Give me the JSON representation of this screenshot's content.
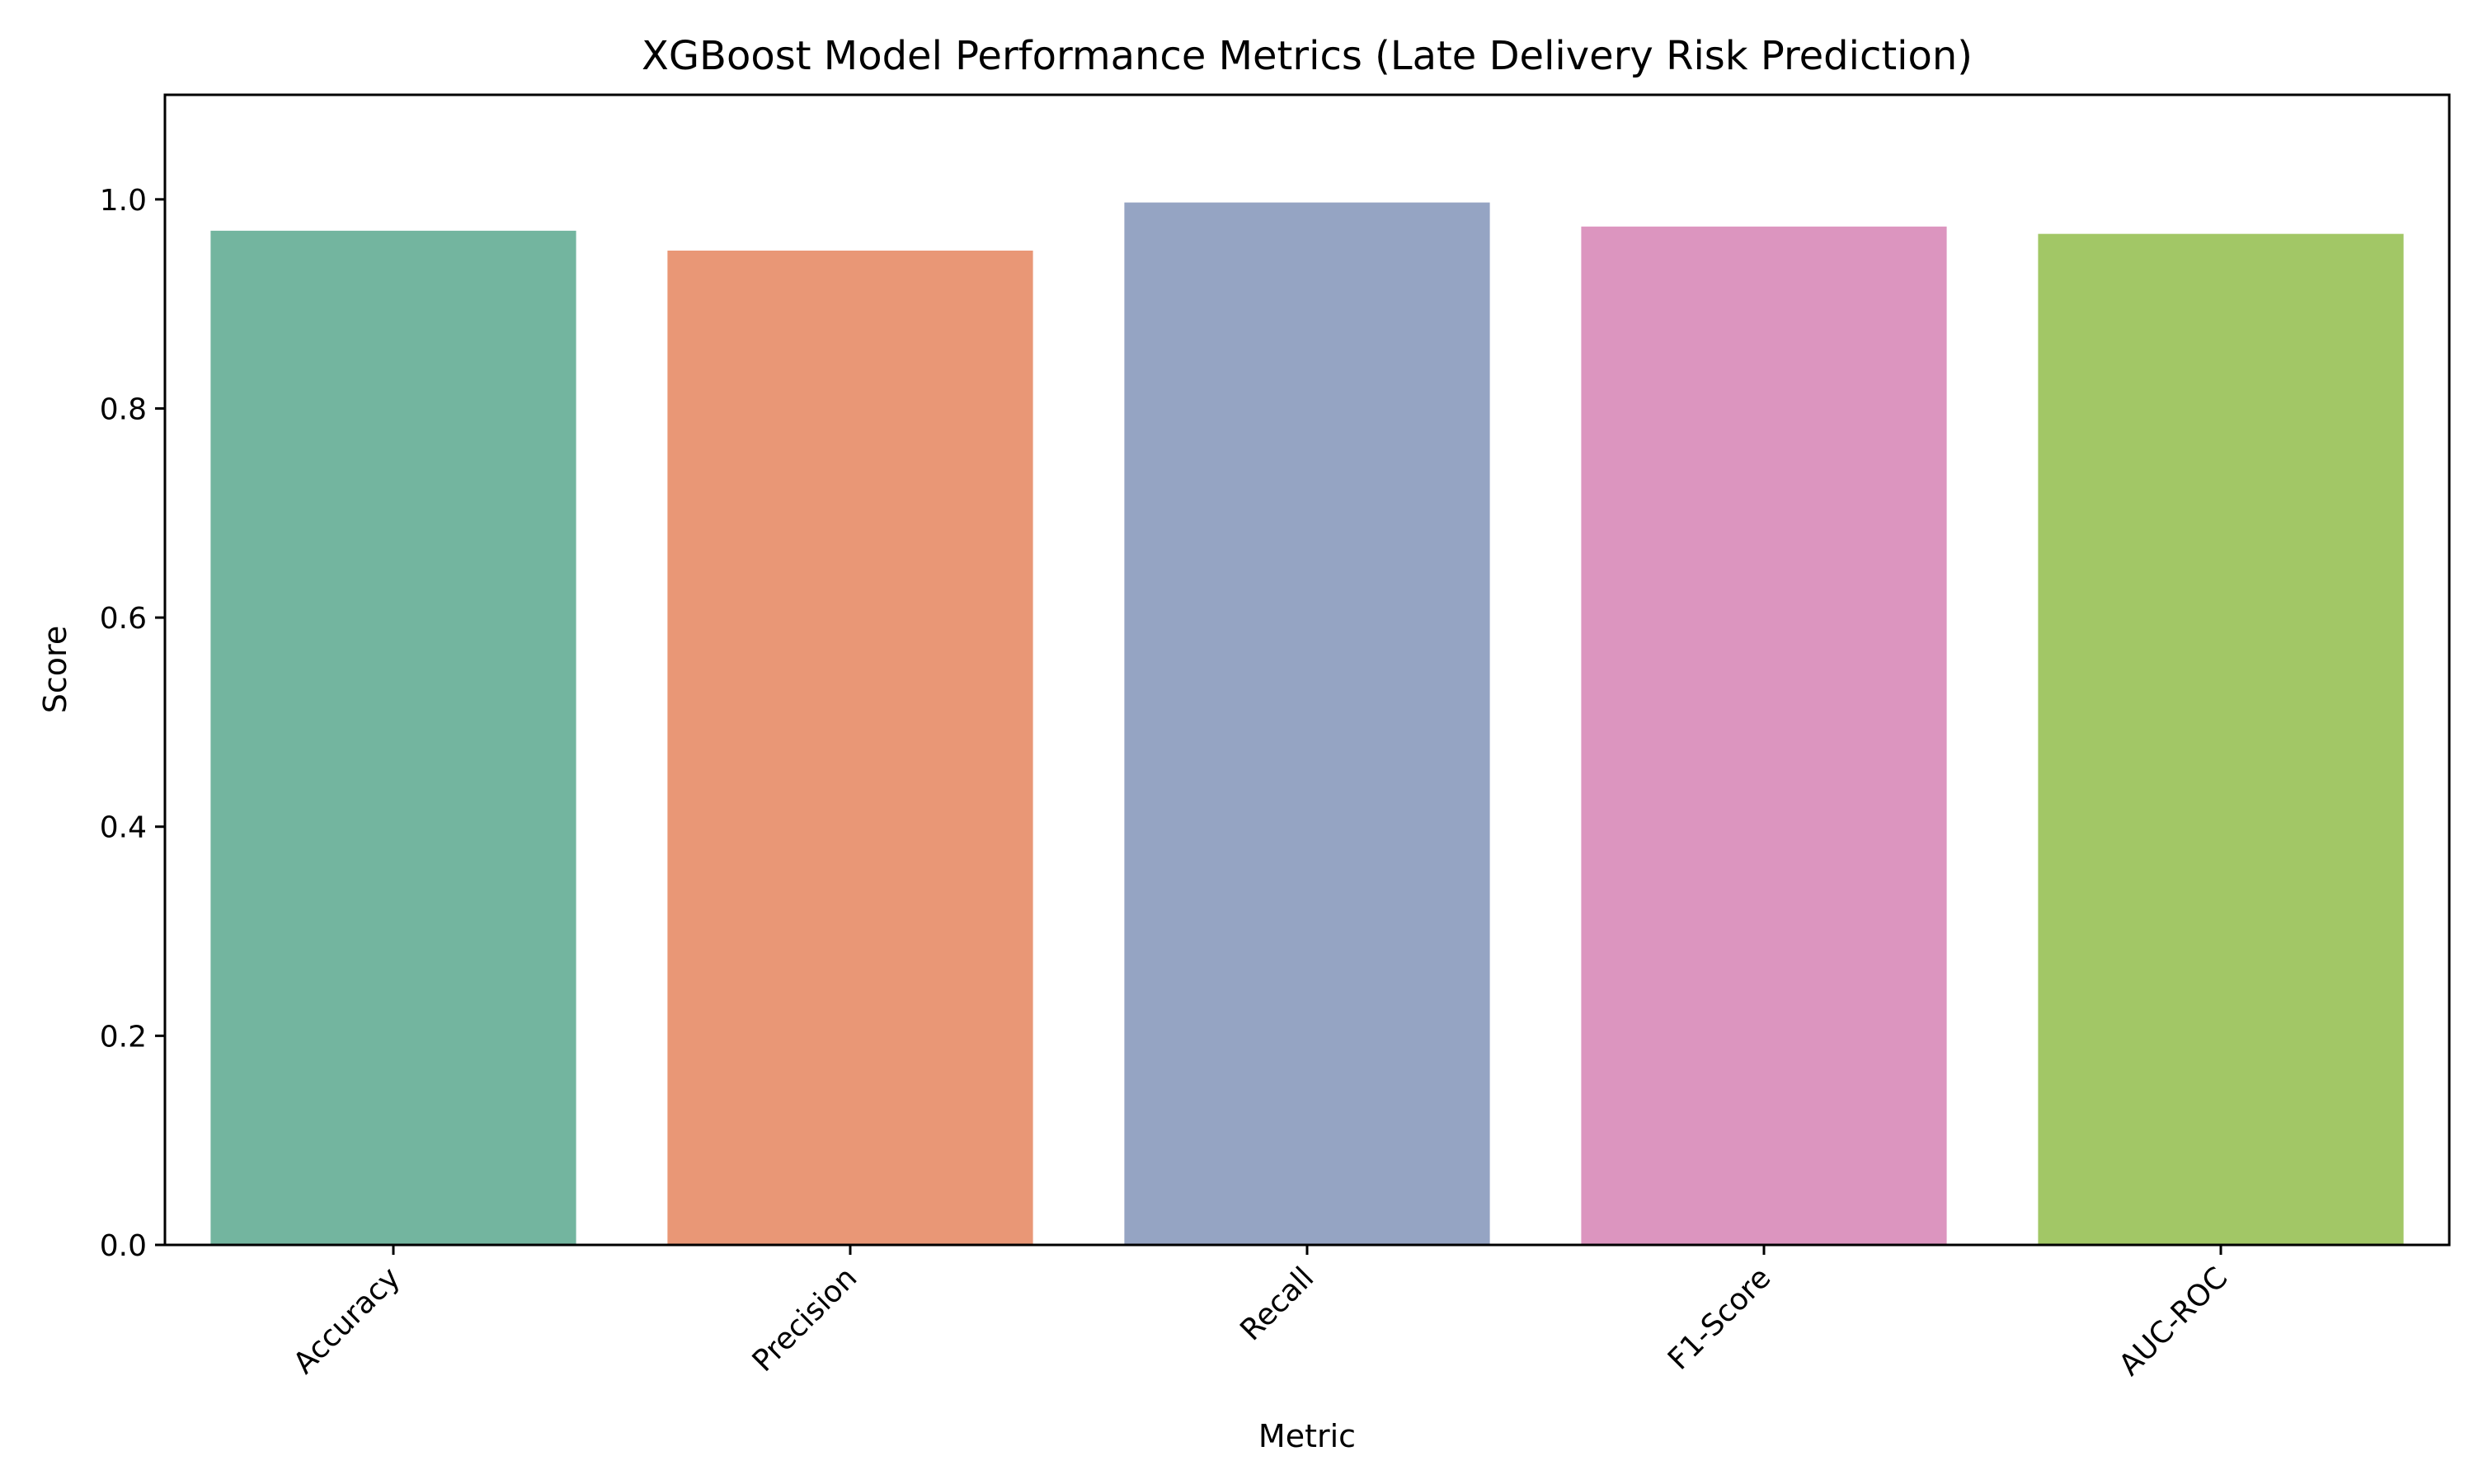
{
  "chart_data": {
    "type": "bar",
    "title": "XGBoost Model Performance Metrics (Late Delivery Risk Prediction)",
    "xlabel": "Metric",
    "ylabel": "Score",
    "categories": [
      "Accuracy",
      "Precision",
      "Recall",
      "F1-Score",
      "AUC-ROC"
    ],
    "values": [
      0.97,
      0.951,
      0.997,
      0.974,
      0.967
    ],
    "colors": [
      "#73b59f",
      "#e99776",
      "#95a4c3",
      "#dc95bf",
      "#a2c766"
    ],
    "ylim": [
      0,
      1.1
    ],
    "yticks": [
      0.0,
      0.2,
      0.4,
      0.6,
      0.8,
      1.0
    ],
    "ytick_labels": [
      "0.0",
      "0.2",
      "0.4",
      "0.6",
      "0.8",
      "1.0"
    ],
    "grid": false,
    "legend": "none"
  }
}
